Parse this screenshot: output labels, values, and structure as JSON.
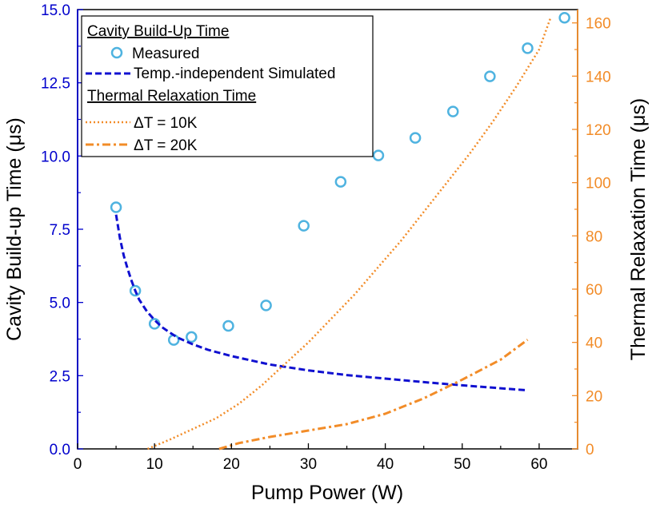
{
  "chart_data": {
    "type": "line",
    "xlabel": "Pump Power (W)",
    "ylabel_left": "Cavity Build-up Time (μs)",
    "ylabel_right": "Thermal Relaxation Time (μs)",
    "xlim": [
      0,
      65
    ],
    "ylim_left": [
      0,
      15
    ],
    "ylim_right": [
      0,
      165
    ],
    "x_ticks": [
      "0",
      "10",
      "20",
      "30",
      "40",
      "50",
      "60"
    ],
    "y_left_ticks": [
      "0.0",
      "2.5",
      "5.0",
      "7.5",
      "10.0",
      "12.5",
      "15.0"
    ],
    "y_right_ticks": [
      "0",
      "20",
      "40",
      "60",
      "80",
      "100",
      "120",
      "140",
      "160"
    ],
    "grid": false,
    "legend_position": "top-left",
    "legend": {
      "group1_title": "Cavity Build-Up Time",
      "group2_title": "Thermal Relaxation Time"
    },
    "colors": {
      "left_axis": "#0000cc",
      "right_axis": "#f28c28",
      "measured": "#4fb3e0",
      "simulated": "#1010d0",
      "thermal": "#f28c28"
    },
    "series": [
      {
        "name": "Measured",
        "axis": "left",
        "style": "markers",
        "x": [
          5.0,
          7.5,
          10.0,
          12.5,
          14.8,
          19.6,
          24.5,
          29.4,
          34.2,
          39.1,
          43.9,
          48.8,
          53.6,
          58.5,
          63.3
        ],
        "y": [
          8.25,
          5.4,
          4.27,
          3.72,
          3.82,
          4.2,
          4.9,
          7.62,
          9.12,
          10.02,
          10.62,
          11.52,
          12.72,
          13.68,
          14.72
        ]
      },
      {
        "name": "Temp.-independent Simulated",
        "axis": "left",
        "style": "dashed",
        "x": [
          5.0,
          5.5,
          6.0,
          6.5,
          7.0,
          7.5,
          8.0,
          9.0,
          10.0,
          11.0,
          12.0,
          13.0,
          15.0,
          17.0,
          20.0,
          25.0,
          30.0,
          35.0,
          40.0,
          45.0,
          50.0,
          55.0,
          58.5
        ],
        "y": [
          8.0,
          7.2,
          6.6,
          6.15,
          5.75,
          5.4,
          5.1,
          4.7,
          4.4,
          4.15,
          3.97,
          3.8,
          3.57,
          3.38,
          3.17,
          2.88,
          2.68,
          2.52,
          2.4,
          2.28,
          2.17,
          2.07,
          2.0
        ]
      },
      {
        "name": "ΔT = 10K",
        "axis": "right",
        "style": "dotted",
        "x": [
          9.1,
          12.0,
          15.0,
          18.0,
          21.0,
          24.0,
          27.0,
          30.0,
          33.0,
          36.0,
          39.0,
          42.0,
          45.0,
          48.0,
          51.0,
          54.0,
          57.0,
          60.0,
          61.5
        ],
        "y": [
          0,
          3.5,
          7.5,
          11.5,
          17,
          24,
          32,
          40,
          49,
          58,
          68,
          78,
          89,
          100,
          111,
          123,
          136,
          150,
          162
        ]
      },
      {
        "name": "ΔT = 20K",
        "axis": "right",
        "style": "dashdot",
        "x": [
          18.4,
          21.0,
          25.0,
          30.0,
          35.0,
          40.0,
          45.0,
          50.0,
          55.0,
          58.5
        ],
        "y": [
          0,
          2.2,
          4.5,
          6.9,
          9.3,
          13.2,
          19.0,
          26.0,
          33.5,
          41.0
        ]
      }
    ]
  }
}
